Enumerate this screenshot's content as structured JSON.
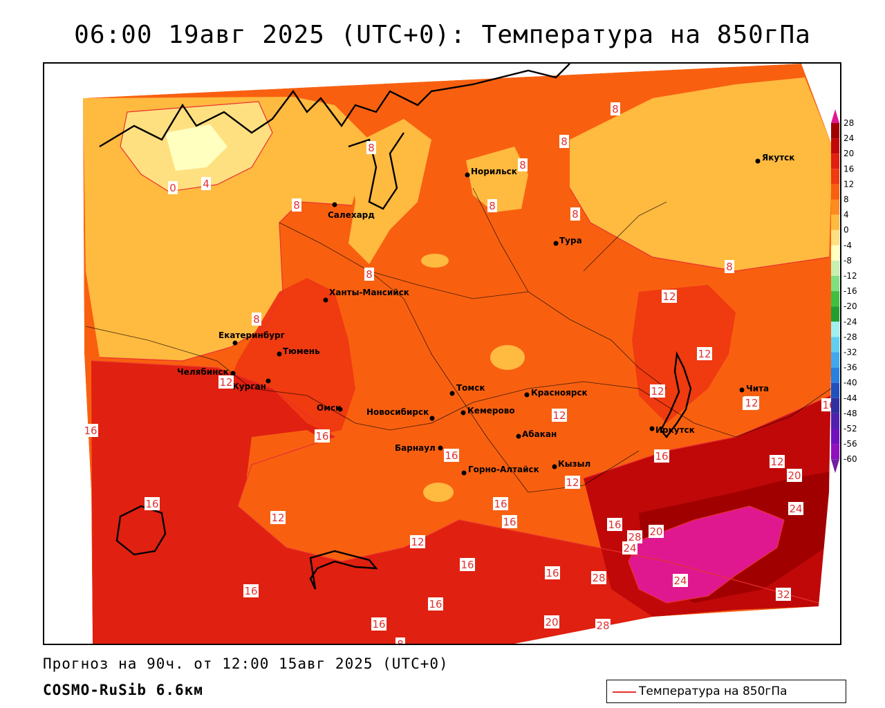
{
  "title": "06:00 19авг 2025 (UTC+0): Температура на 850гПа",
  "forecast_text": "Прогноз на 90ч. от 12:00 15авг 2025 (UTC+0)",
  "model_text": "COSMO-RuSib 6.6км",
  "legend": {
    "label": "Температура на 850гПа",
    "line_color": "#e83030"
  },
  "colorbar": {
    "ticks": [
      "28",
      "24",
      "20",
      "16",
      "12",
      "8",
      "4",
      "0",
      "-4",
      "-8",
      "-12",
      "-16",
      "-20",
      "-24",
      "-28",
      "-32",
      "-36",
      "-40",
      "-44",
      "-48",
      "-52",
      "-56",
      "-60"
    ],
    "colors": [
      "#a00000",
      "#c00808",
      "#e02010",
      "#f03a10",
      "#f86010",
      "#ff8a20",
      "#ffba40",
      "#ffe080",
      "#ffffc0",
      "#c8f0b0",
      "#80e080",
      "#40c040",
      "#20a030",
      "#a0f0f0",
      "#60d0f0",
      "#40a8f0",
      "#2880e0",
      "#2050c0",
      "#3030a0",
      "#5020b0",
      "#7010c0",
      "#9010c0"
    ],
    "top_color": "#e01890",
    "bottom_color": "#7020a0"
  },
  "cities": [
    {
      "name": "Якутск"
    },
    {
      "name": "Норильск"
    },
    {
      "name": "Салехард"
    },
    {
      "name": "Тура"
    },
    {
      "name": "Ханты-Мансийск"
    },
    {
      "name": "Екатеринбург"
    },
    {
      "name": "Тюмень"
    },
    {
      "name": "Челябинск"
    },
    {
      "name": "Курган"
    },
    {
      "name": "Омск"
    },
    {
      "name": "Томск"
    },
    {
      "name": "Новосибирск"
    },
    {
      "name": "Кемерово"
    },
    {
      "name": "Красноярск"
    },
    {
      "name": "Абакан"
    },
    {
      "name": "Барнаул"
    },
    {
      "name": "Кызыл"
    },
    {
      "name": "Горно-Алтайск"
    },
    {
      "name": "Иркутск"
    },
    {
      "name": "Чита"
    }
  ],
  "contour_labels": [
    "8",
    "0",
    "4",
    "8",
    "8",
    "8",
    "8",
    "8",
    "8",
    "8",
    "8",
    "8",
    "12",
    "12",
    "12",
    "12",
    "12",
    "16",
    "16",
    "16",
    "16",
    "16",
    "16",
    "16",
    "16",
    "16",
    "16",
    "16",
    "16",
    "16",
    "12",
    "12",
    "12",
    "12",
    "20",
    "24",
    "28",
    "20",
    "24",
    "28",
    "24",
    "32",
    "28",
    "20",
    "16",
    "12",
    "12",
    "8"
  ]
}
